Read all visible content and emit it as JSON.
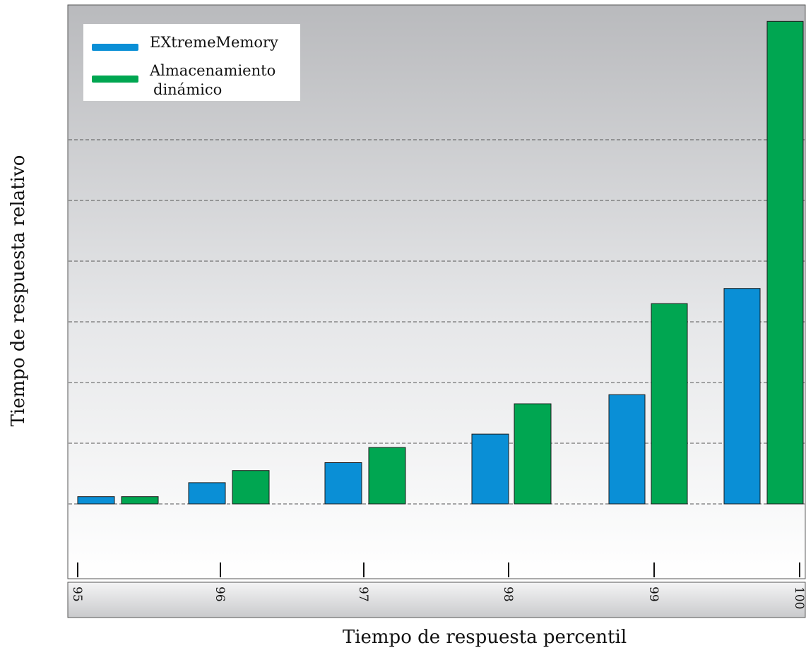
{
  "chart_data": {
    "type": "bar",
    "title": "",
    "xlabel": "Tiempo de respuesta percentil",
    "ylabel": "Tiempo de respuesta relativo",
    "categories": [
      "95",
      "96",
      "97",
      "98",
      "99",
      "100"
    ],
    "series": [
      {
        "name": "EXtremeMemory",
        "color": "#0a8fd6",
        "values": [
          0.12,
          0.35,
          0.68,
          1.15,
          1.8,
          3.55
        ]
      },
      {
        "name": "Almacenamiento dinámico",
        "color": "#00a651",
        "values": [
          0.12,
          0.55,
          0.93,
          1.65,
          3.3,
          7.95
        ]
      }
    ],
    "legend": {
      "placement": "top-left",
      "entries": [
        "EXtremeMemory",
        "Almacenamiento",
        "dinámico"
      ]
    },
    "ylim": [
      -1.2,
      8.3
    ],
    "y_gridlines": [
      1,
      2,
      3,
      4,
      5,
      6
    ],
    "grid": "horizontal-dashed",
    "y_tick_labels_shown": false
  }
}
